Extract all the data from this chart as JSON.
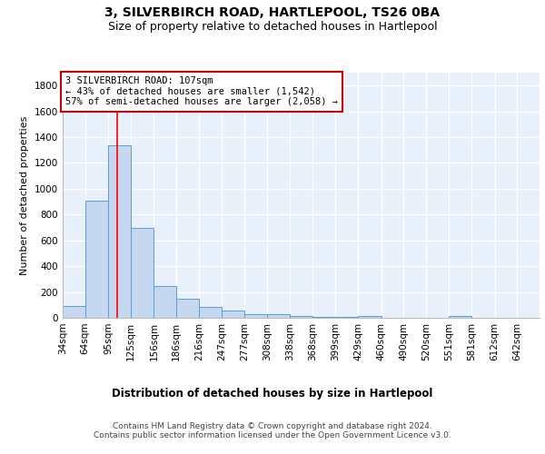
{
  "title1": "3, SILVERBIRCH ROAD, HARTLEPOOL, TS26 0BA",
  "title2": "Size of property relative to detached houses in Hartlepool",
  "xlabel": "Distribution of detached houses by size in Hartlepool",
  "ylabel": "Number of detached properties",
  "bar_values": [
    90,
    910,
    1340,
    700,
    245,
    145,
    85,
    55,
    25,
    25,
    15,
    10,
    10,
    15,
    0,
    0,
    0,
    15,
    0,
    0,
    0
  ],
  "bin_edges": [
    34,
    64,
    95,
    125,
    156,
    186,
    216,
    247,
    277,
    308,
    338,
    368,
    399,
    429,
    460,
    490,
    520,
    551,
    581,
    612,
    642,
    672
  ],
  "x_tick_labels": [
    "34sqm",
    "64sqm",
    "95sqm",
    "125sqm",
    "156sqm",
    "186sqm",
    "216sqm",
    "247sqm",
    "277sqm",
    "308sqm",
    "338sqm",
    "368sqm",
    "399sqm",
    "429sqm",
    "460sqm",
    "490sqm",
    "520sqm",
    "551sqm",
    "581sqm",
    "612sqm",
    "642sqm"
  ],
  "bar_color": "#c5d8f0",
  "bar_edge_color": "#5b9bd5",
  "bg_color": "#e8f0fb",
  "grid_color": "#ffffff",
  "red_line_x": 107,
  "ylim": [
    0,
    1900
  ],
  "yticks": [
    0,
    200,
    400,
    600,
    800,
    1000,
    1200,
    1400,
    1600,
    1800
  ],
  "annotation_text": "3 SILVERBIRCH ROAD: 107sqm\n← 43% of detached houses are smaller (1,542)\n57% of semi-detached houses are larger (2,058) →",
  "annotation_box_color": "#ffffff",
  "annotation_box_edge": "#cc0000",
  "footer_text": "Contains HM Land Registry data © Crown copyright and database right 2024.\nContains public sector information licensed under the Open Government Licence v3.0.",
  "title1_fontsize": 10,
  "title2_fontsize": 9,
  "xlabel_fontsize": 8.5,
  "ylabel_fontsize": 8,
  "tick_fontsize": 7.5,
  "footer_fontsize": 6.5,
  "ann_fontsize": 7.5
}
